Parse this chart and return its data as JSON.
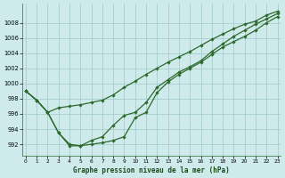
{
  "title": "Graphe pression niveau de la mer (hPa)",
  "bg_color": "#ceeaea",
  "grid_color": "#9ec8c8",
  "line_color": "#2d6a2d",
  "x_ticks": [
    0,
    1,
    2,
    3,
    4,
    5,
    6,
    7,
    8,
    9,
    10,
    11,
    12,
    13,
    14,
    15,
    16,
    17,
    18,
    19,
    20,
    21,
    22,
    23
  ],
  "y_ticks": [
    992,
    994,
    996,
    998,
    1000,
    1002,
    1004,
    1006,
    1008
  ],
  "ylim": [
    990.5,
    1010.5
  ],
  "xlim": [
    -0.3,
    23.3
  ],
  "line1": [
    999.0,
    997.8,
    996.2,
    996.8,
    997.0,
    997.2,
    997.5,
    997.8,
    998.5,
    999.5,
    1000.3,
    1001.2,
    1002.0,
    1002.8,
    1003.5,
    1004.2,
    1005.0,
    1005.8,
    1006.5,
    1007.2,
    1007.8,
    1008.2,
    1009.0,
    1009.5
  ],
  "line2": [
    999.0,
    997.8,
    996.2,
    993.5,
    992.0,
    991.8,
    992.5,
    993.0,
    994.5,
    995.8,
    996.2,
    997.5,
    999.5,
    1000.5,
    1001.5,
    1002.2,
    1003.0,
    1004.2,
    1005.2,
    1006.2,
    1007.0,
    1007.8,
    1008.5,
    1009.2
  ],
  "line3": [
    999.0,
    997.8,
    996.2,
    993.5,
    991.8,
    991.8,
    992.0,
    992.2,
    992.5,
    993.0,
    995.5,
    996.2,
    998.8,
    1000.2,
    1001.2,
    1002.0,
    1002.8,
    1003.8,
    1004.8,
    1005.5,
    1006.2,
    1007.0,
    1008.0,
    1008.8
  ]
}
